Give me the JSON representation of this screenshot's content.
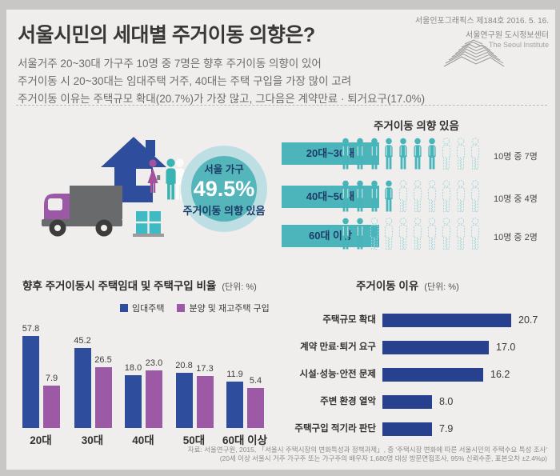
{
  "header": {
    "title": "서울시민의 세대별 주거이동 의향은?",
    "issue": "서울인포그래픽스 제184호 2016. 5. 16.",
    "org": "서울연구원 도시정보센터",
    "org_en": "The Seoul Institute"
  },
  "summary": {
    "lines": [
      "서울거주 20~30대 가구주 10명 중 7명은 향후 주거이동 의향이 있어",
      "주거이동 시 20~30대는 임대주택 거주, 40대는 주택 구입을 가장 많이 고려",
      "주거이동 이유는 주택규모 확대(20.7%)가 가장 많고, 그다음은 계약만료 · 퇴거요구(17.0%)"
    ]
  },
  "intent": {
    "section_title": "주거이동 의향 있음",
    "circle": {
      "top": "서울 가구",
      "value": "49.5%",
      "bottom": "주거이동 의향 있음"
    },
    "rows": [
      {
        "group": "20대~30대",
        "filled": 7,
        "total": 10,
        "label": "10명 중 7명"
      },
      {
        "group": "40대~50대",
        "filled": 4,
        "total": 10,
        "label": "10명 중 4명"
      },
      {
        "group": "60대 이상",
        "filled": 2,
        "total": 10,
        "label": "10명 중 2명"
      }
    ]
  },
  "chart_data": [
    {
      "type": "bar",
      "orientation": "vertical",
      "title": "향후 주거이동시 주택임대 및 주택구입 비율",
      "unit": "(단위: %)",
      "categories": [
        "20대",
        "30대",
        "40대",
        "50대",
        "60대 이상"
      ],
      "series": [
        {
          "name": "임대주택",
          "color": "#2e4d9c",
          "values": [
            57.8,
            45.2,
            18.0,
            20.8,
            11.9
          ]
        },
        {
          "name": "분양 및 재고주택 구입",
          "color": "#9c59a5",
          "values": [
            7.9,
            26.5,
            23.0,
            17.3,
            5.4
          ]
        }
      ],
      "value_labels_on": true,
      "grid": false,
      "legend_position": "top"
    },
    {
      "type": "bar",
      "orientation": "horizontal",
      "title": "주거이동 이유",
      "unit": "(단위: %)",
      "categories": [
        "주택규모 확대",
        "계약 만료·퇴거 요구",
        "시설·성능·안전 문제",
        "주변 환경 열악",
        "주택구입 적기라 판단"
      ],
      "values": [
        20.7,
        17.0,
        16.2,
        8.0,
        7.9
      ],
      "color": "#27418e",
      "value_labels_on": true,
      "grid": false
    }
  ],
  "footer": {
    "line1": "자료: 서울연구원, 2015, 「서울시 주택시장의 변화특성과 정책과제」, 중 '주택시장 변화에 따른 서울시민의 주택수요 특성 조사'",
    "line2": "(20세 이상 서울시 거주 가구주 또는 가구주의 배우자 1,680명 대상 방문면접조사, 95% 신뢰수준, 표본오차 ±2.4%p)"
  },
  "colors": {
    "teal": "#47b4ba",
    "teal_box": "#4cb5bb",
    "teal_outline": "#a2d6da",
    "circle_outer": "#bddfe4",
    "circle_inner": "#54b5bb",
    "navy_text": "#1c3b66",
    "blue_bar": "#2e4d9c",
    "purple_bar": "#9c59a5",
    "reason_bar": "#27418e",
    "panel_bg": "#f0eeec"
  }
}
